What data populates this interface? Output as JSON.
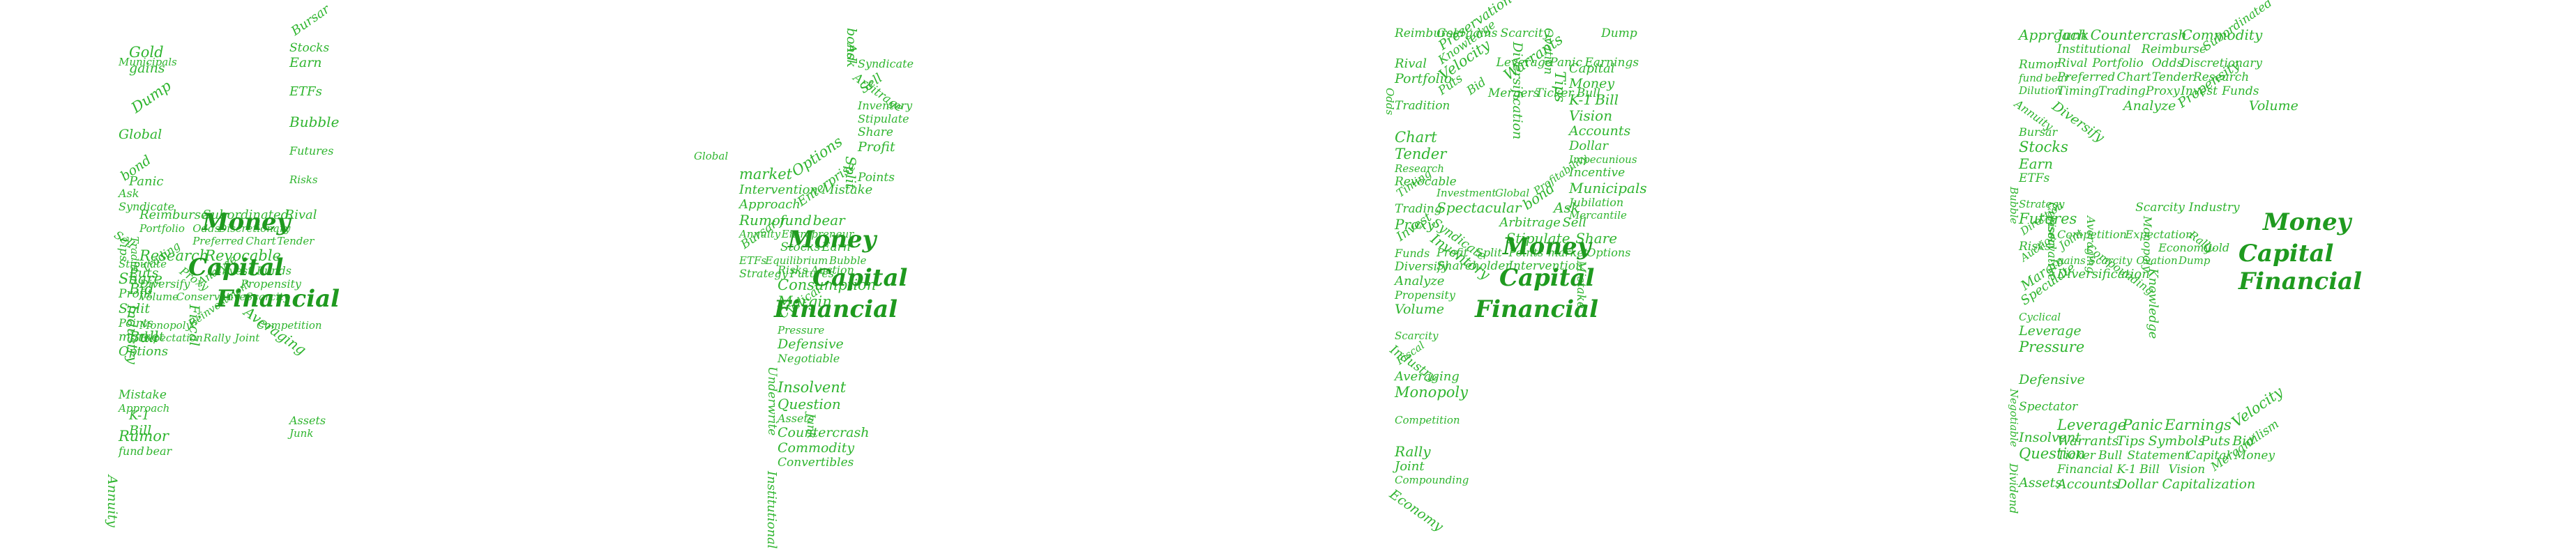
{
  "word_art": {
    "text": "HYPE",
    "color": "#2fb52f",
    "big_color": "#1f9a1f",
    "words": [
      "Impecunious",
      "Incentive",
      "Municipals",
      "Jubilation",
      "Mercantile",
      "Industrials",
      "Investment",
      "Global",
      "Profitability",
      "Spectacular",
      "bond",
      "Ask",
      "Speculator",
      "Syndicate",
      "Arbitrage",
      "Sell",
      "Certificate",
      "Inventory",
      "Stipulate",
      "Share",
      "Profit",
      "Split",
      "Points",
      "market",
      "Options",
      "Shareholder",
      "Intervention",
      "Mistake",
      "Approach",
      "Enterprise",
      "Rumor",
      "fund",
      "bear",
      "Dilution",
      "Annuity",
      "Entrepreneur",
      "Bursar",
      "Stocks",
      "Earn",
      "Influence",
      "ETFs",
      "Equilibrium",
      "Bubble",
      "Strategy",
      "Futures",
      "Direction",
      "Risks",
      "Auction",
      "Consumption",
      "Margin",
      "Speculate",
      "Cyclical",
      "Leverage",
      "Pressure",
      "Interest-sensitive",
      "Defensive",
      "Negotiable",
      "Spectator",
      "Underwrite",
      "Insolvent",
      "Question",
      "Dividend",
      "Assets",
      "Junk",
      "Countercrash",
      "Commodity",
      "Convertibles",
      "Institutional",
      "Reimburse",
      "Subordinated",
      "Rival",
      "Portfolio",
      "Odds",
      "Discretionary",
      "Tradition",
      "Preferred",
      "Chart",
      "Tender",
      "Research",
      "Revocable",
      "Timing",
      "Trading",
      "Proxy",
      "Invest",
      "Funds",
      "Insider",
      "Diversify",
      "Analyze",
      "Propensity",
      "Volume",
      "Conservative",
      "Scarcity",
      "Industry",
      "Fiscal",
      "Averaging",
      "Monopoly",
      "Reinvestment",
      "Competition",
      "Expectation",
      "Rally",
      "Joint",
      "Compounding",
      "Economy",
      "Gold",
      "gains",
      "Scarcity",
      "Ovation",
      "Dump",
      "Preservation",
      "Diversification",
      "Knowledge",
      "Leverage",
      "Panic",
      "Earnings",
      "Velocity",
      "Warrants",
      "Tips",
      "Symbols",
      "Puts",
      "Bid",
      "Mergers",
      "Ticker",
      "Bull",
      "Statement",
      "Capital",
      "Money",
      "Financial",
      "K-1",
      "Bill",
      "Vision",
      "Mercantilism",
      "Accounts",
      "Dollar",
      "Capitalization"
    ],
    "big_words": [
      "Money",
      "Capital",
      "Financial"
    ]
  }
}
